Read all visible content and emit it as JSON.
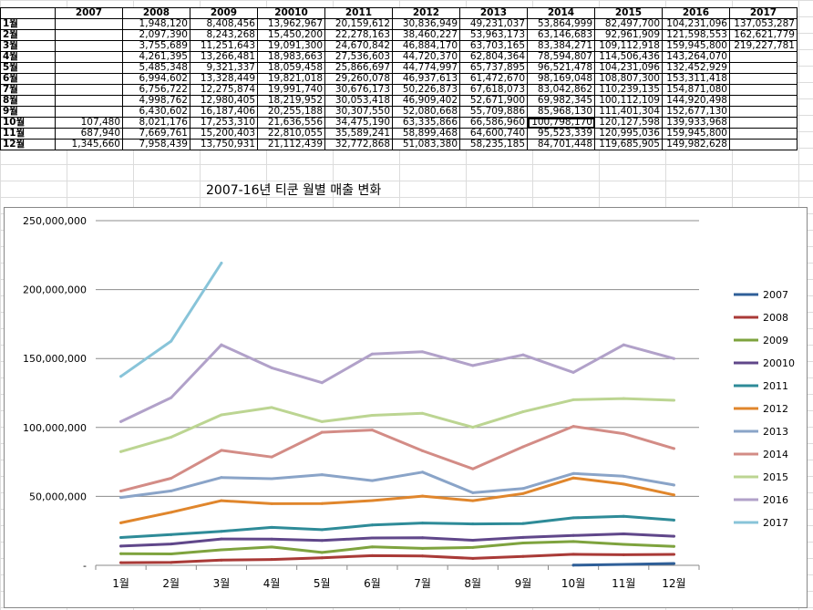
{
  "table": {
    "headers": [
      "2007",
      "2008",
      "2009",
      "20010",
      "2011",
      "2012",
      "2013",
      "2014",
      "2015",
      "2016",
      "2017"
    ],
    "rows": [
      {
        "label": "1월",
        "cells": [
          "",
          "1,948,120",
          "8,408,456",
          "13,962,967",
          "20,159,612",
          "30,836,949",
          "49,231,037",
          "53,864,999",
          "82,497,700",
          "104,231,096",
          "137,053,287"
        ]
      },
      {
        "label": "2월",
        "cells": [
          "",
          "2,097,390",
          "8,243,268",
          "15,450,200",
          "22,278,163",
          "38,460,227",
          "53,963,173",
          "63,146,683",
          "92,961,909",
          "121,598,553",
          "162,621,779"
        ]
      },
      {
        "label": "3월",
        "cells": [
          "",
          "3,755,689",
          "11,251,643",
          "19,091,300",
          "24,670,842",
          "46,884,170",
          "63,703,165",
          "83,384,271",
          "109,112,918",
          "159,945,800",
          "219,227,781"
        ]
      },
      {
        "label": "4월",
        "cells": [
          "",
          "4,261,395",
          "13,266,481",
          "18,983,663",
          "27,536,603",
          "44,720,370",
          "62,804,364",
          "78,594,807",
          "114,506,436",
          "143,264,070",
          ""
        ]
      },
      {
        "label": "5월",
        "cells": [
          "",
          "5,485,348",
          "9,321,337",
          "18,059,458",
          "25,866,697",
          "44,774,997",
          "65,737,895",
          "96,521,478",
          "104,231,096",
          "132,452,929",
          ""
        ]
      },
      {
        "label": "6월",
        "cells": [
          "",
          "6,994,602",
          "13,328,449",
          "19,821,018",
          "29,260,078",
          "46,937,613",
          "61,472,670",
          "98,169,048",
          "108,807,300",
          "153,311,418",
          ""
        ]
      },
      {
        "label": "7월",
        "cells": [
          "",
          "6,756,722",
          "12,275,874",
          "19,991,740",
          "30,676,173",
          "50,226,873",
          "67,618,073",
          "83,042,862",
          "110,239,135",
          "154,871,080",
          ""
        ]
      },
      {
        "label": "8월",
        "cells": [
          "",
          "4,998,762",
          "12,980,405",
          "18,219,952",
          "30,053,418",
          "46,909,402",
          "52,671,900",
          "69,982,345",
          "100,112,109",
          "144,920,498",
          ""
        ]
      },
      {
        "label": "9월",
        "cells": [
          "",
          "6,430,602",
          "16,187,406",
          "20,255,188",
          "30,307,550",
          "52,080,668",
          "55,709,886",
          "85,968,130",
          "111,401,304",
          "152,677,130",
          ""
        ]
      },
      {
        "label": "10월",
        "cells": [
          "107,480",
          "8,021,176",
          "17,253,310",
          "21,636,556",
          "34,475,190",
          "63,335,866",
          "66,586,960",
          "100,798,170",
          "120,127,598",
          "139,933,968",
          ""
        ]
      },
      {
        "label": "11월",
        "cells": [
          "687,940",
          "7,669,761",
          "15,200,403",
          "22,810,055",
          "35,589,241",
          "58,899,468",
          "64,600,740",
          "95,523,339",
          "120,995,036",
          "159,945,800",
          ""
        ]
      },
      {
        "label": "12월",
        "cells": [
          "1,345,660",
          "7,958,439",
          "13,750,931",
          "21,112,439",
          "32,772,868",
          "51,083,380",
          "58,235,185",
          "84,701,448",
          "119,685,905",
          "149,982,628",
          ""
        ]
      }
    ]
  },
  "chart_data": {
    "type": "line",
    "title": "2007-16년 티쿤 월별 매출 변화",
    "xlabel": "",
    "ylabel": "",
    "categories": [
      "1월",
      "2월",
      "3월",
      "4월",
      "5월",
      "6월",
      "7월",
      "8월",
      "9월",
      "10월",
      "11월",
      "12월"
    ],
    "ylim": [
      0,
      250000000
    ],
    "yticks": [
      0,
      50000000,
      100000000,
      150000000,
      200000000,
      250000000
    ],
    "ytick_labels": [
      "-",
      "50,000,000",
      "100,000,000",
      "150,000,000",
      "200,000,000",
      "250,000,000"
    ],
    "grid": true,
    "legend": "right",
    "series": [
      {
        "name": "2007",
        "color": "#2f5f98",
        "values": [
          null,
          null,
          null,
          null,
          null,
          null,
          null,
          null,
          null,
          107480,
          687940,
          1345660
        ]
      },
      {
        "name": "2008",
        "color": "#a93a37",
        "values": [
          1948120,
          2097390,
          3755689,
          4261395,
          5485348,
          6994602,
          6756722,
          4998762,
          6430602,
          8021176,
          7669761,
          7958439
        ]
      },
      {
        "name": "2009",
        "color": "#7ea33e",
        "values": [
          8408456,
          8243268,
          11251643,
          13266481,
          9321337,
          13328449,
          12275874,
          12980405,
          16187406,
          17253310,
          15200403,
          13750931
        ]
      },
      {
        "name": "20010",
        "color": "#60478a",
        "values": [
          13962967,
          15450200,
          19091300,
          18983663,
          18059458,
          19821018,
          19991740,
          18219952,
          20255188,
          21636556,
          22810055,
          21112439
        ]
      },
      {
        "name": "2011",
        "color": "#2e8b98",
        "values": [
          20159612,
          22278163,
          24670842,
          27536603,
          25866697,
          29260078,
          30676173,
          30053418,
          30307550,
          34475190,
          35589241,
          32772868
        ]
      },
      {
        "name": "2012",
        "color": "#e0862c",
        "values": [
          30836949,
          38460227,
          46884170,
          44720370,
          44774997,
          46937613,
          50226873,
          46909402,
          52080668,
          63335866,
          58899468,
          51083380
        ]
      },
      {
        "name": "2013",
        "color": "#8aa4c8",
        "values": [
          49231037,
          53963173,
          63703165,
          62804364,
          65737895,
          61472670,
          67618073,
          52671900,
          55709886,
          66586960,
          64600740,
          58235185
        ]
      },
      {
        "name": "2014",
        "color": "#d38c86",
        "values": [
          53864999,
          63146683,
          83384271,
          78594807,
          96521478,
          98169048,
          83042862,
          69982345,
          85968130,
          100798170,
          95523339,
          84701448
        ]
      },
      {
        "name": "2015",
        "color": "#bcd592",
        "values": [
          82497700,
          92961909,
          109112918,
          114506436,
          104231096,
          108807300,
          110239135,
          100112109,
          111401304,
          120127598,
          120995036,
          119685905
        ]
      },
      {
        "name": "2016",
        "color": "#b1a1c9",
        "values": [
          104231096,
          121598553,
          159945800,
          143264070,
          132452929,
          153311418,
          154871080,
          144920498,
          152677130,
          139933968,
          159945800,
          149982628
        ]
      },
      {
        "name": "2017",
        "color": "#88c4d9",
        "values": [
          137053287,
          162621779,
          219227781,
          null,
          null,
          null,
          null,
          null,
          null,
          null,
          null,
          null
        ]
      }
    ]
  }
}
